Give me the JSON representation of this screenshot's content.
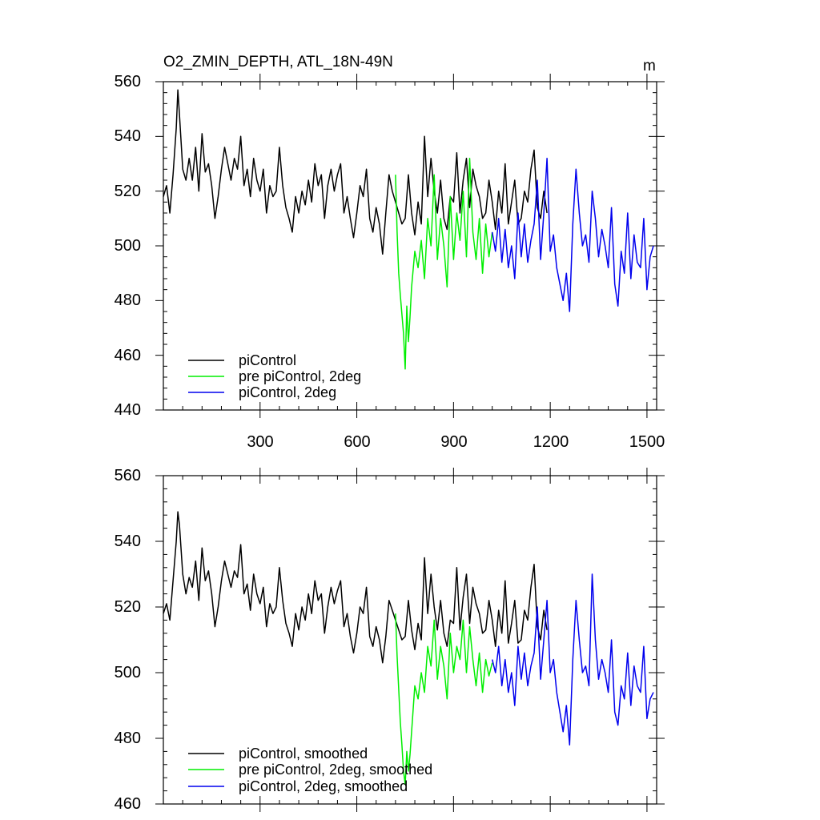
{
  "colors": {
    "piControl": "#000000",
    "pre_2deg": "#00ee00",
    "pi_2deg": "#0000ee"
  },
  "chart_data": [
    {
      "type": "line",
      "title": "O2_ZMIN_DEPTH, ATL_18N-49N",
      "unit": "m",
      "xlim": [
        0,
        1530
      ],
      "ylim": [
        440,
        560
      ],
      "xticks": [
        300,
        600,
        900,
        1200,
        1500
      ],
      "xtick_labels": [
        "300",
        "600",
        "900",
        "1200",
        "1500"
      ],
      "yticks": [
        440,
        460,
        480,
        500,
        520,
        540,
        560
      ],
      "ytick_labels": [
        "440",
        "460",
        "480",
        "500",
        "520",
        "540",
        "560"
      ],
      "legend_position": "bottom-left",
      "series": [
        {
          "name": "piControl",
          "color_key": "piControl",
          "x": [
            0,
            10,
            20,
            30,
            40,
            45,
            50,
            60,
            70,
            80,
            90,
            100,
            110,
            120,
            130,
            140,
            150,
            160,
            170,
            180,
            190,
            200,
            210,
            220,
            230,
            240,
            250,
            260,
            270,
            280,
            290,
            300,
            310,
            320,
            330,
            340,
            350,
            360,
            370,
            380,
            390,
            400,
            410,
            420,
            430,
            440,
            450,
            460,
            470,
            480,
            490,
            500,
            510,
            520,
            530,
            540,
            550,
            560,
            570,
            580,
            590,
            600,
            610,
            620,
            630,
            640,
            650,
            660,
            670,
            680,
            690,
            700,
            710,
            720,
            730,
            740,
            750,
            760,
            770,
            780,
            790,
            800,
            810,
            820,
            830,
            840,
            850,
            860,
            870,
            880,
            890,
            900,
            910,
            920,
            930,
            940,
            950,
            960,
            970,
            980,
            990,
            1000,
            1010,
            1020,
            1030,
            1040,
            1050,
            1060,
            1070,
            1080,
            1090,
            1100,
            1110,
            1120,
            1130,
            1140,
            1150,
            1160,
            1170,
            1180,
            1190
          ],
          "values": [
            518,
            522,
            512,
            526,
            543,
            557,
            548,
            528,
            524,
            532,
            524,
            536,
            520,
            541,
            527,
            530,
            522,
            510,
            518,
            528,
            536,
            530,
            524,
            532,
            528,
            540,
            522,
            528,
            518,
            532,
            524,
            520,
            528,
            512,
            522,
            518,
            520,
            536,
            522,
            514,
            510,
            505,
            518,
            512,
            520,
            515,
            524,
            516,
            530,
            522,
            526,
            510,
            522,
            528,
            520,
            526,
            530,
            512,
            518,
            510,
            503,
            512,
            522,
            518,
            528,
            510,
            505,
            514,
            508,
            497,
            512,
            526,
            520,
            516,
            512,
            508,
            510,
            526,
            512,
            504,
            516,
            508,
            540,
            518,
            532,
            520,
            512,
            524,
            510,
            506,
            518,
            516,
            534,
            512,
            524,
            532,
            514,
            528,
            522,
            518,
            510,
            512,
            524,
            516,
            506,
            520,
            512,
            530,
            508,
            516,
            524,
            508,
            510,
            520,
            516,
            528,
            535,
            514,
            510,
            520,
            512
          ]
        },
        {
          "name": "pre piControl, 2deg",
          "color_key": "pre_2deg",
          "x": [
            720,
            725,
            730,
            735,
            740,
            745,
            750,
            755,
            760,
            765,
            770,
            780,
            790,
            800,
            810,
            820,
            830,
            840,
            850,
            860,
            870,
            880,
            890,
            900,
            910,
            920,
            930,
            940,
            950,
            960,
            970,
            980,
            990,
            1000,
            1010,
            1020
          ],
          "values": [
            526,
            505,
            490,
            482,
            475,
            468,
            455,
            478,
            465,
            474,
            485,
            498,
            492,
            502,
            488,
            510,
            500,
            526,
            495,
            510,
            500,
            485,
            518,
            495,
            512,
            502,
            520,
            496,
            532,
            505,
            495,
            510,
            490,
            508,
            496,
            505
          ]
        },
        {
          "name": "piControl, 2deg",
          "color_key": "pi_2deg",
          "x": [
            1020,
            1030,
            1040,
            1050,
            1060,
            1070,
            1080,
            1090,
            1100,
            1110,
            1120,
            1130,
            1140,
            1150,
            1160,
            1170,
            1180,
            1190,
            1200,
            1210,
            1220,
            1230,
            1240,
            1250,
            1260,
            1270,
            1280,
            1290,
            1300,
            1310,
            1320,
            1330,
            1340,
            1350,
            1360,
            1370,
            1380,
            1390,
            1400,
            1410,
            1420,
            1430,
            1440,
            1450,
            1460,
            1470,
            1480,
            1490,
            1500,
            1510,
            1520
          ],
          "values": [
            505,
            498,
            510,
            494,
            506,
            492,
            500,
            488,
            512,
            496,
            508,
            494,
            502,
            508,
            524,
            495,
            512,
            532,
            498,
            504,
            492,
            486,
            480,
            490,
            476,
            508,
            528,
            512,
            500,
            504,
            494,
            520,
            510,
            496,
            506,
            500,
            492,
            514,
            486,
            478,
            498,
            490,
            512,
            488,
            504,
            494,
            492,
            510,
            484,
            496,
            500
          ]
        }
      ]
    },
    {
      "type": "line",
      "title": "",
      "xlim": [
        0,
        1530
      ],
      "ylim": [
        460,
        560
      ],
      "xticks": [
        300,
        600,
        900,
        1200,
        1500
      ],
      "yticks": [
        460,
        480,
        500,
        520,
        540,
        560
      ],
      "ytick_labels": [
        "460",
        "480",
        "500",
        "520",
        "540",
        "560"
      ],
      "legend_position": "bottom-left",
      "series": [
        {
          "name": "piControl, smoothed",
          "color_key": "piControl",
          "x": [
            0,
            10,
            20,
            30,
            40,
            45,
            50,
            60,
            70,
            80,
            90,
            100,
            110,
            120,
            130,
            140,
            150,
            160,
            170,
            180,
            190,
            200,
            210,
            220,
            230,
            240,
            250,
            260,
            270,
            280,
            290,
            300,
            310,
            320,
            330,
            340,
            350,
            360,
            370,
            380,
            390,
            400,
            410,
            420,
            430,
            440,
            450,
            460,
            470,
            480,
            490,
            500,
            510,
            520,
            530,
            540,
            550,
            560,
            570,
            580,
            590,
            600,
            610,
            620,
            630,
            640,
            650,
            660,
            670,
            680,
            690,
            700,
            710,
            720,
            730,
            740,
            750,
            760,
            770,
            780,
            790,
            800,
            810,
            820,
            830,
            840,
            850,
            860,
            870,
            880,
            890,
            900,
            910,
            920,
            930,
            940,
            950,
            960,
            970,
            980,
            990,
            1000,
            1010,
            1020,
            1030,
            1040,
            1050,
            1060,
            1070,
            1080,
            1090,
            1100,
            1110,
            1120,
            1130,
            1140,
            1150,
            1160,
            1170,
            1180,
            1190
          ],
          "values": [
            518,
            521,
            516,
            528,
            540,
            549,
            545,
            530,
            524,
            529,
            526,
            534,
            522,
            538,
            528,
            531,
            524,
            514,
            520,
            528,
            534,
            530,
            526,
            531,
            529,
            539,
            524,
            527,
            519,
            530,
            524,
            521,
            526,
            514,
            521,
            518,
            520,
            532,
            522,
            515,
            512,
            508,
            518,
            513,
            520,
            516,
            524,
            518,
            528,
            522,
            524,
            512,
            520,
            526,
            521,
            525,
            528,
            514,
            518,
            511,
            506,
            512,
            520,
            518,
            526,
            511,
            508,
            514,
            510,
            503,
            511,
            522,
            519,
            516,
            513,
            510,
            511,
            522,
            513,
            507,
            515,
            510,
            535,
            518,
            530,
            520,
            513,
            522,
            512,
            508,
            516,
            515,
            532,
            513,
            523,
            530,
            515,
            526,
            521,
            518,
            512,
            513,
            522,
            516,
            508,
            519,
            512,
            528,
            509,
            515,
            522,
            509,
            510,
            519,
            516,
            526,
            533,
            514,
            510,
            519,
            513
          ]
        },
        {
          "name": "pre piControl, 2deg, smoothed",
          "color_key": "pre_2deg",
          "x": [
            720,
            725,
            730,
            735,
            740,
            745,
            750,
            755,
            760,
            765,
            770,
            780,
            790,
            800,
            810,
            820,
            830,
            840,
            850,
            860,
            870,
            880,
            890,
            900,
            910,
            920,
            930,
            940,
            950,
            960,
            970,
            980,
            990,
            1000,
            1010,
            1020
          ],
          "values": [
            518,
            505,
            495,
            485,
            478,
            470,
            466,
            476,
            470,
            475,
            482,
            496,
            492,
            500,
            494,
            508,
            502,
            516,
            498,
            508,
            502,
            492,
            512,
            500,
            508,
            504,
            516,
            500,
            514,
            504,
            496,
            506,
            494,
            504,
            499,
            503
          ]
        },
        {
          "name": "piControl, 2deg, smoothed",
          "color_key": "pi_2deg",
          "x": [
            1020,
            1030,
            1040,
            1050,
            1060,
            1070,
            1080,
            1090,
            1100,
            1110,
            1120,
            1130,
            1140,
            1150,
            1160,
            1170,
            1180,
            1190,
            1200,
            1210,
            1220,
            1230,
            1240,
            1250,
            1260,
            1270,
            1280,
            1290,
            1300,
            1310,
            1320,
            1330,
            1340,
            1350,
            1360,
            1370,
            1380,
            1390,
            1400,
            1410,
            1420,
            1430,
            1440,
            1450,
            1460,
            1470,
            1480,
            1490,
            1500,
            1510,
            1520
          ],
          "values": [
            504,
            500,
            508,
            496,
            504,
            494,
            500,
            490,
            508,
            498,
            506,
            496,
            502,
            506,
            520,
            498,
            510,
            522,
            500,
            504,
            494,
            488,
            482,
            490,
            478,
            504,
            522,
            510,
            500,
            502,
            496,
            530,
            510,
            498,
            504,
            500,
            494,
            510,
            488,
            484,
            496,
            492,
            506,
            490,
            502,
            496,
            494,
            508,
            486,
            492,
            494
          ]
        }
      ]
    }
  ]
}
